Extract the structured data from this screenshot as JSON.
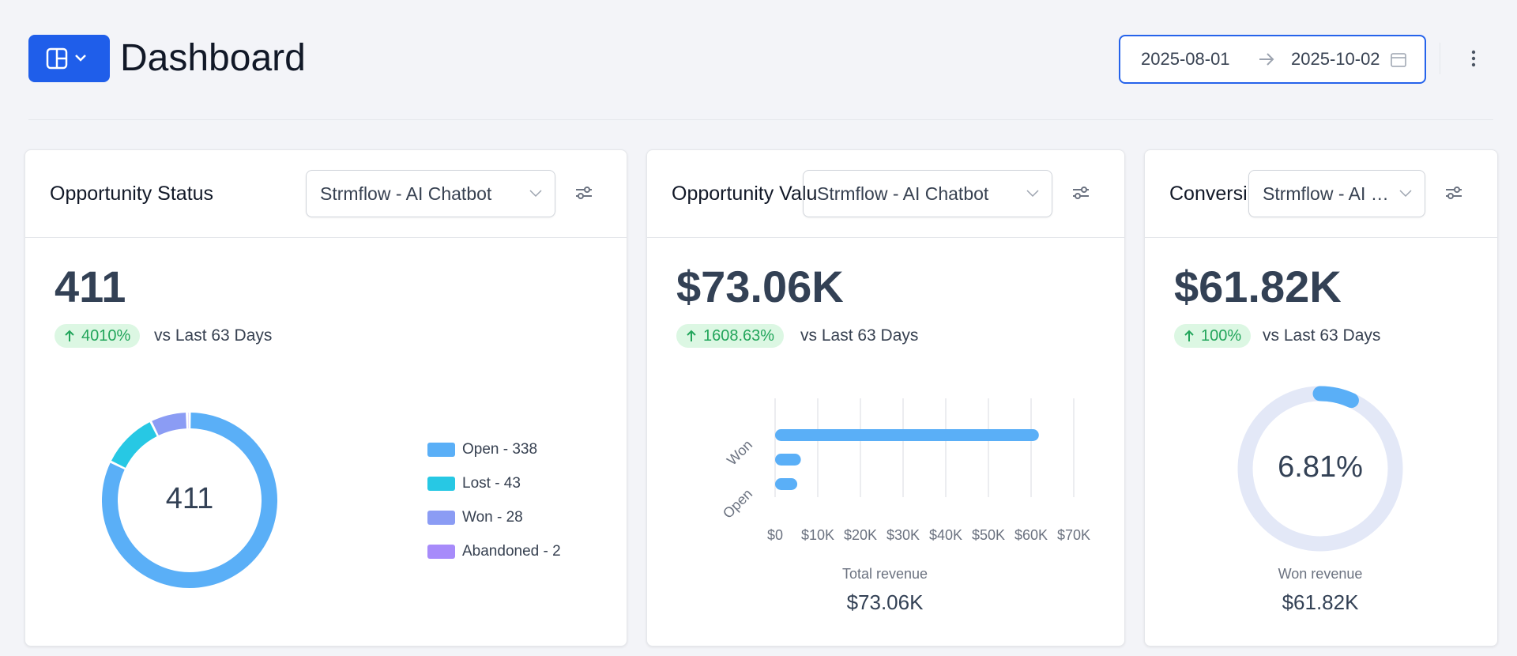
{
  "header": {
    "title": "Dashboard",
    "date_start": "2025-08-01",
    "date_end": "2025-10-02"
  },
  "cards": [
    {
      "title": "Opportunity Status",
      "filter": "Strmflow - AI Chatbot",
      "kpi": "411",
      "change": "4010%",
      "comparison": "vs Last 63 Days",
      "chart_data": {
        "type": "donut",
        "center_label": "411",
        "categories": [
          "Open - 338",
          "Lost - 43",
          "Won - 28",
          "Abandoned - 2"
        ],
        "values": [
          338,
          43,
          28,
          2
        ],
        "colors": [
          "#5aaff7",
          "#27c8e4",
          "#8b9cf4",
          "#a78bfa"
        ]
      }
    },
    {
      "title": "Opportunity Value",
      "filter": "Strmflow - AI Chatbot",
      "kpi": "$73.06K",
      "change": "1608.63%",
      "comparison": "vs Last 63 Days",
      "chart_data": {
        "type": "bar",
        "orientation": "horizontal",
        "categories": [
          "Won",
          null,
          "Open"
        ],
        "values": [
          61820,
          6040,
          5200
        ],
        "color": "#5aaff7",
        "xlim": [
          0,
          70000
        ],
        "xticks": [
          {
            "value": 0,
            "label": "$0"
          },
          {
            "value": 10000,
            "label": "$10K"
          },
          {
            "value": 20000,
            "label": "$20K"
          },
          {
            "value": 30000,
            "label": "$30K"
          },
          {
            "value": 40000,
            "label": "$40K"
          },
          {
            "value": 50000,
            "label": "$50K"
          },
          {
            "value": 60000,
            "label": "$60K"
          },
          {
            "value": 70000,
            "label": "$70K"
          }
        ],
        "grid": true,
        "caption": "Total revenue",
        "total": "$73.06K"
      }
    },
    {
      "title": "Conversion Value",
      "filter": "Strmflow - AI Chatbot",
      "kpi": "$61.82K",
      "change": "100%",
      "comparison": "vs Last 63 Days",
      "chart_data": {
        "type": "gauge",
        "values": [
          6.81
        ],
        "value_labels": [
          "6.81%"
        ],
        "ylim": [
          0,
          100
        ],
        "color": "#5aaff7",
        "track_color": "#e3e8f7",
        "caption": "Won revenue",
        "total": "$61.82K"
      }
    }
  ]
}
